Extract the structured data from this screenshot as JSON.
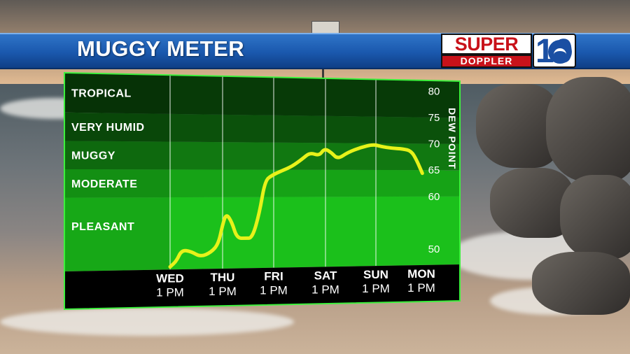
{
  "header": {
    "title": "MUGGY METER"
  },
  "logo": {
    "line1": "SUPER",
    "line2": "DOPPLER",
    "number": "10"
  },
  "colors": {
    "title_bar": "#1a58ad",
    "bands": [
      "#073a07",
      "#0b510b",
      "#117811",
      "#16a316",
      "#1bc01b"
    ],
    "line": "#e7f21a",
    "chart_border": "#3cf03c",
    "time_strip": "#000000"
  },
  "chart_data": {
    "type": "line",
    "title": "MUGGY METER",
    "ylabel": "DEW POINT",
    "ylim": [
      47,
      82
    ],
    "yticks": [
      80,
      75,
      70,
      65,
      60,
      50
    ],
    "bands": [
      {
        "name": "TROPICAL",
        "from": 75,
        "to": 82
      },
      {
        "name": "VERY HUMID",
        "from": 70,
        "to": 75
      },
      {
        "name": "MUGGY",
        "from": 65,
        "to": 70
      },
      {
        "name": "MODERATE",
        "from": 60,
        "to": 65
      },
      {
        "name": "PLEASANT",
        "from": 47,
        "to": 60
      }
    ],
    "categories": [
      {
        "day": "WED",
        "time": "1 PM"
      },
      {
        "day": "THU",
        "time": "1 PM"
      },
      {
        "day": "FRI",
        "time": "1 PM"
      },
      {
        "day": "SAT",
        "time": "1 PM"
      },
      {
        "day": "SUN",
        "time": "1 PM"
      },
      {
        "day": "MON",
        "time": "1 PM"
      }
    ],
    "series": [
      {
        "values": [
          [
            0.0,
            47.5
          ],
          [
            0.12,
            48.5
          ],
          [
            0.22,
            50.5
          ],
          [
            0.4,
            50.2
          ],
          [
            0.58,
            49.2
          ],
          [
            0.78,
            50.0
          ],
          [
            0.92,
            51.5
          ],
          [
            1.0,
            55.0
          ],
          [
            1.07,
            57.0
          ],
          [
            1.18,
            55.5
          ],
          [
            1.28,
            52.5
          ],
          [
            1.45,
            52.5
          ],
          [
            1.58,
            52.5
          ],
          [
            1.72,
            57.0
          ],
          [
            1.83,
            63.0
          ],
          [
            1.97,
            64.0
          ],
          [
            2.15,
            64.8
          ],
          [
            2.35,
            65.6
          ],
          [
            2.55,
            67.0
          ],
          [
            2.7,
            68.2
          ],
          [
            2.88,
            67.6
          ],
          [
            2.98,
            69.0
          ],
          [
            3.12,
            68.2
          ],
          [
            3.24,
            67.0
          ],
          [
            3.45,
            68.3
          ],
          [
            3.7,
            69.2
          ],
          [
            3.95,
            69.8
          ],
          [
            4.12,
            69.4
          ],
          [
            4.35,
            69.1
          ],
          [
            4.6,
            69.0
          ],
          [
            4.78,
            68.6
          ],
          [
            4.9,
            66.8
          ],
          [
            5.02,
            64.4
          ]
        ]
      }
    ]
  }
}
